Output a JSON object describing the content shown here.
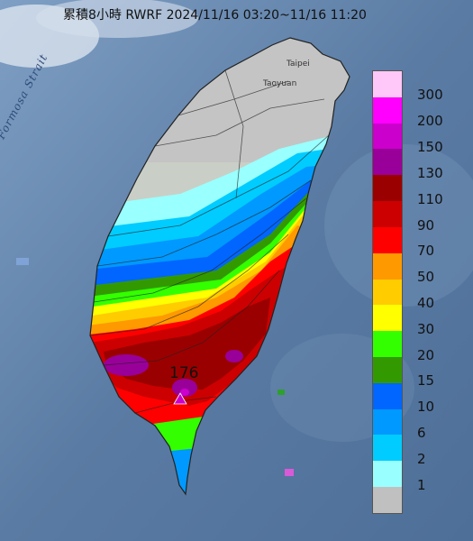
{
  "title": "累積8小時 RWRF 2024/11/16 03:20~11/16 11:20",
  "sea_label": "Formosa Strait",
  "cities": {
    "taipei": "Taipei",
    "taoyuan": "Taoyuan"
  },
  "max_point_label": "176",
  "legend": {
    "items": [
      {
        "label": "300",
        "color": "#ffc8f8"
      },
      {
        "label": "200",
        "color": "#ff00ff"
      },
      {
        "label": "150",
        "color": "#cc00cc"
      },
      {
        "label": "130",
        "color": "#990099"
      },
      {
        "label": "110",
        "color": "#9b0000"
      },
      {
        "label": "90",
        "color": "#cc0000"
      },
      {
        "label": "70",
        "color": "#ff0000"
      },
      {
        "label": "50",
        "color": "#ff9900"
      },
      {
        "label": "40",
        "color": "#ffcc00"
      },
      {
        "label": "30",
        "color": "#ffff00"
      },
      {
        "label": "20",
        "color": "#33ff00"
      },
      {
        "label": "15",
        "color": "#339900"
      },
      {
        "label": "10",
        "color": "#0066ff"
      },
      {
        "label": "6",
        "color": "#0099ff"
      },
      {
        "label": "2",
        "color": "#00ccff"
      },
      {
        "label": "1",
        "color": "#99ffff"
      },
      {
        "label": "",
        "color": "#c0c0c0"
      }
    ]
  }
}
